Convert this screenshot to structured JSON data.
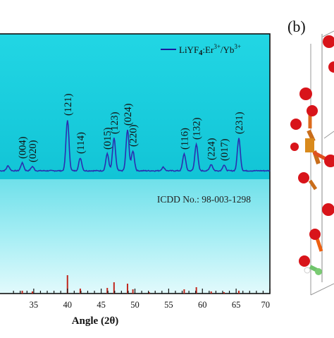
{
  "panel_b_label": "(b)",
  "chart_data": {
    "type": "line",
    "xlabel": "Angle (2θ)",
    "xlim": [
      30,
      70
    ],
    "x_ticks": [
      "35",
      "40",
      "45",
      "50",
      "55",
      "60",
      "65",
      "70"
    ],
    "legend": {
      "name": "LiYF",
      "sub": "4",
      "mid": ":Er",
      "sup1": "3+",
      "sep": "/Yb",
      "sup2": "3+",
      "placement": "top-right",
      "color": "#1a1aa0"
    },
    "series_color": "#2a2fb0",
    "reference_label": "ICDD No.: 98-003-1298",
    "reference_color": "#c0261c",
    "baseline": 100,
    "peaks": [
      {
        "label": "(004)",
        "x": 33.3,
        "height": 11
      },
      {
        "label": "(020)",
        "x": 34.8,
        "height": 6
      },
      {
        "label": "(121)",
        "x": 40.0,
        "height": 72
      },
      {
        "label": "(114)",
        "x": 41.9,
        "height": 18
      },
      {
        "label": "(015)",
        "x": 45.9,
        "height": 24
      },
      {
        "label": "(123)",
        "x": 46.9,
        "height": 46
      },
      {
        "label": "(024)",
        "x": 48.9,
        "height": 58
      },
      {
        "label": "(220)",
        "x": 49.7,
        "height": 28
      },
      {
        "label": "(116)",
        "x": 57.3,
        "height": 24
      },
      {
        "label": "(132)",
        "x": 59.1,
        "height": 38
      },
      {
        "label": "(224)",
        "x": 61.3,
        "height": 9
      },
      {
        "label": "(017)",
        "x": 63.2,
        "height": 8
      },
      {
        "label": "(231)",
        "x": 65.4,
        "height": 46
      }
    ],
    "minor_peaks": [
      {
        "x": 31.2,
        "height": 7
      },
      {
        "x": 54.2,
        "height": 5
      }
    ],
    "reference_lines": [
      {
        "x": 33.3,
        "intensity": 4
      },
      {
        "x": 34.8,
        "intensity": 3
      },
      {
        "x": 40.0,
        "intensity": 26
      },
      {
        "x": 41.9,
        "intensity": 7
      },
      {
        "x": 45.9,
        "intensity": 8
      },
      {
        "x": 46.9,
        "intensity": 16
      },
      {
        "x": 48.9,
        "intensity": 14
      },
      {
        "x": 49.7,
        "intensity": 6
      },
      {
        "x": 52.1,
        "intensity": 2
      },
      {
        "x": 57.3,
        "intensity": 6
      },
      {
        "x": 59.1,
        "intensity": 9
      },
      {
        "x": 61.3,
        "intensity": 3
      },
      {
        "x": 63.2,
        "intensity": 2
      },
      {
        "x": 65.4,
        "intensity": 4
      }
    ]
  }
}
